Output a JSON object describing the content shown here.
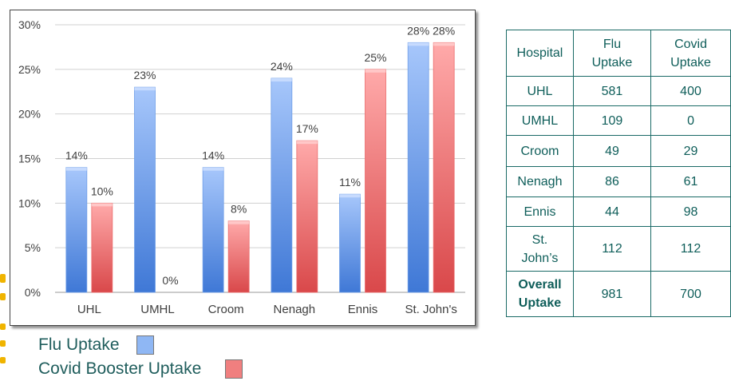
{
  "chart_data": {
    "type": "bar",
    "categories": [
      "UHL",
      "UMHL",
      "Croom",
      "Nenagh",
      "Ennis",
      "St. John's"
    ],
    "series": [
      {
        "name": "Flu Uptake",
        "color": "#6f9fe8",
        "values": [
          14,
          23,
          14,
          24,
          11,
          28
        ],
        "labels": [
          "14%",
          "23%",
          "14%",
          "24%",
          "11%",
          "28%"
        ]
      },
      {
        "name": "Covid Booster Uptake",
        "color": "#ec6b6b",
        "values": [
          10,
          0,
          8,
          17,
          25,
          28
        ],
        "labels": [
          "10%",
          "0%",
          "8%",
          "17%",
          "25%",
          "28%"
        ]
      }
    ],
    "yticks": [
      "0%",
      "5%",
      "10%",
      "15%",
      "20%",
      "25%",
      "30%"
    ],
    "ylim": [
      0,
      30
    ],
    "grid": true,
    "title": "",
    "xlabel": "",
    "ylabel": ""
  },
  "legend": [
    {
      "label": "Flu Uptake",
      "color": "#8fb7f4"
    },
    {
      "label": "Covid Booster Uptake",
      "color": "#f07f7f"
    }
  ],
  "table": {
    "headers": [
      "Hospital",
      "Flu Uptake",
      "Covid Uptake"
    ],
    "rows": [
      {
        "hospital": "UHL",
        "flu": "581",
        "covid": "400"
      },
      {
        "hospital": "UMHL",
        "flu": "109",
        "covid": "0"
      },
      {
        "hospital": "Croom",
        "flu": "49",
        "covid": "29"
      },
      {
        "hospital": "Nenagh",
        "flu": "86",
        "covid": "61"
      },
      {
        "hospital": "Ennis",
        "flu": "44",
        "covid": "98"
      },
      {
        "hospital": "St. John’s",
        "flu": "112",
        "covid": "112"
      }
    ],
    "total": {
      "label": "Overall Uptake",
      "flu": "981",
      "covid": "700"
    }
  }
}
